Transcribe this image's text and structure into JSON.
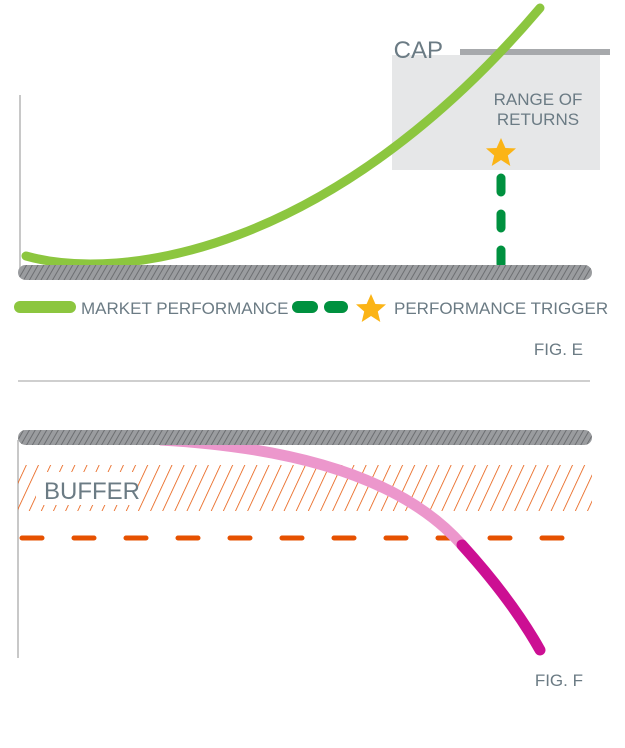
{
  "fig_e": {
    "cap_label": "CAP",
    "range_label_1": "RANGE OF",
    "range_label_2": "RETURNS",
    "legend": {
      "market": "MARKET PERFORMANCE",
      "trigger": "PERFORMANCE TRIGGER"
    },
    "figure_label": "FIG. E"
  },
  "fig_f": {
    "buffer_label": "BUFFER",
    "figure_label": "FIG. F"
  },
  "colors": {
    "market": "#8cc63f",
    "trigger": "#00913f",
    "star": "#fbb416",
    "cap": "#a7a9ac",
    "range": "#e6e7e8",
    "buffer": "#e65100",
    "loss_light": "#ec97cc",
    "loss_dark": "#cc0f93",
    "text": "#6b7b84"
  }
}
